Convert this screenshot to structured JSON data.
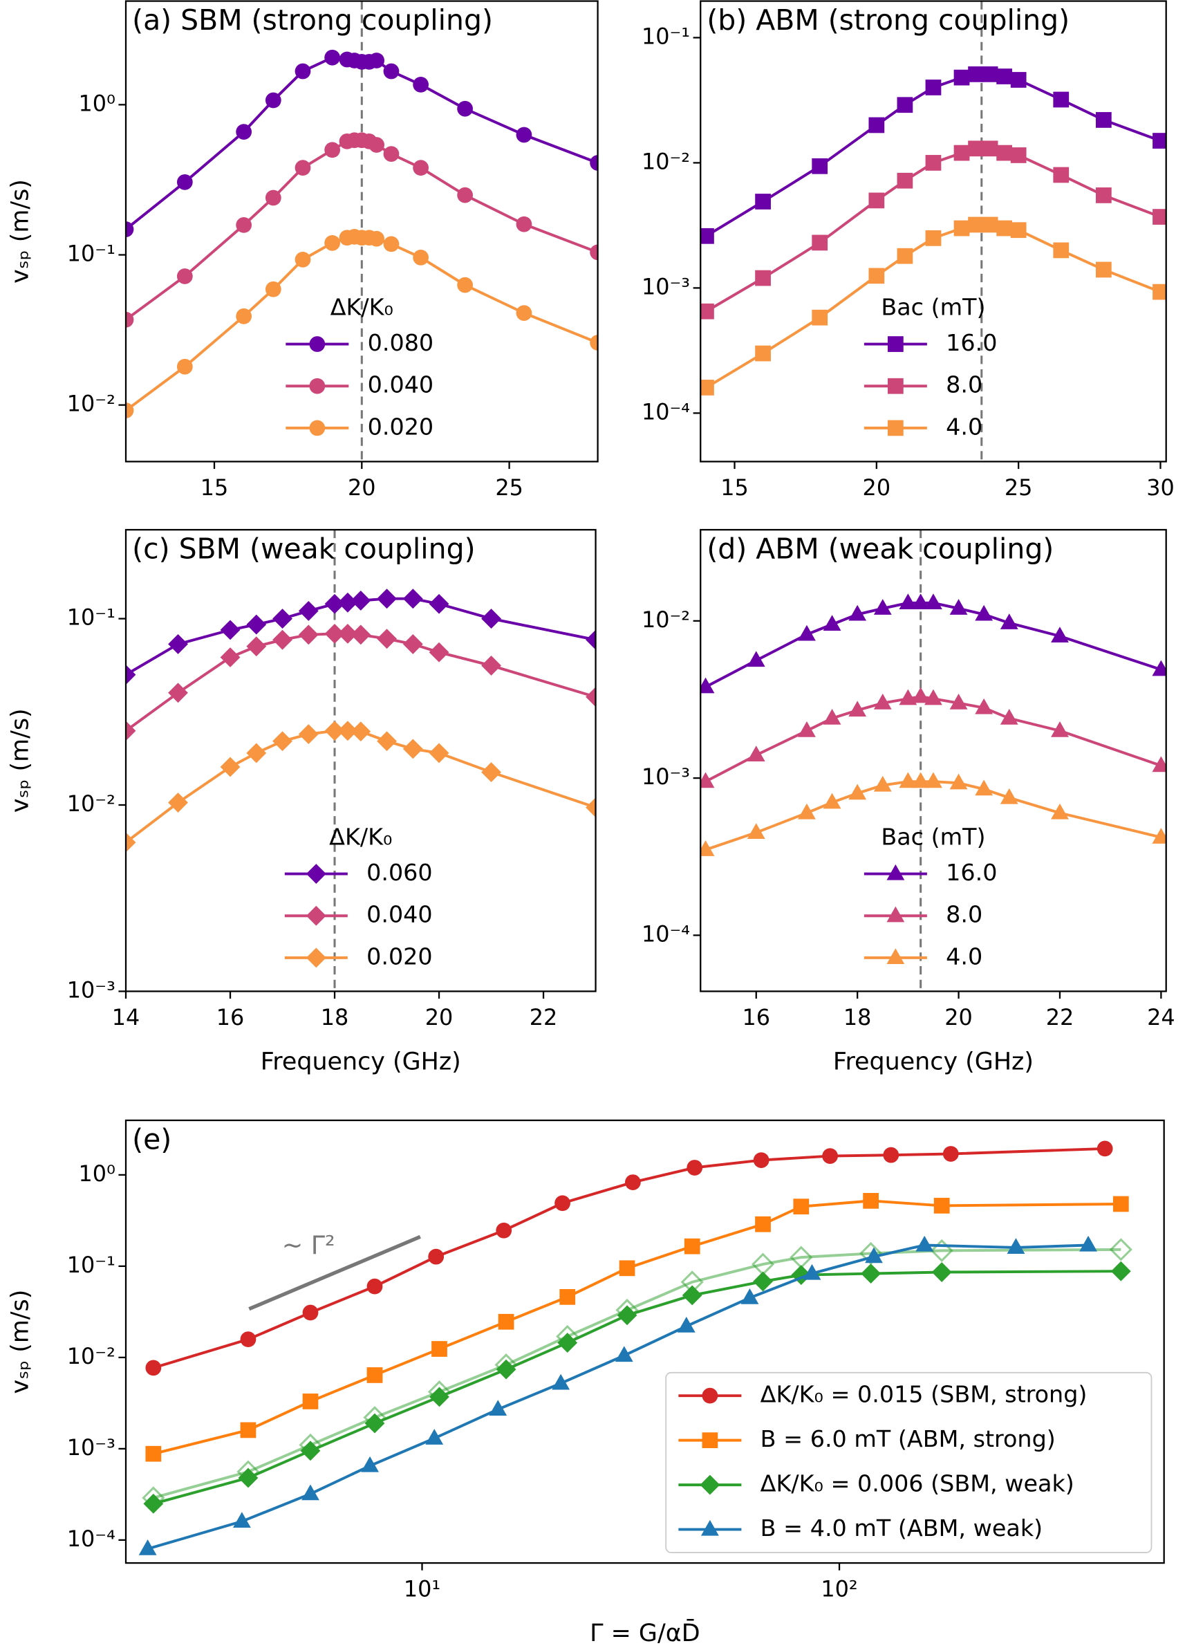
{
  "chart_data": [
    {
      "type": "line",
      "title": "(a) SBM (strong coupling)",
      "ylabel": "vₛₚ (m/s)",
      "x": [
        12,
        14,
        16,
        17,
        18,
        19,
        19.5,
        19.75,
        20,
        20.25,
        20.5,
        21,
        22,
        23.5,
        25.5,
        28
      ],
      "xlim": [
        12,
        28
      ],
      "xticks": [
        15,
        20,
        25
      ],
      "yscale": "log",
      "ylim": [
        0.0042,
        4.9
      ],
      "yticks": [
        {
          "value": 0.01,
          "label": "10⁻²"
        },
        {
          "value": 0.1,
          "label": "10⁻¹"
        },
        {
          "value": 1,
          "label": "10⁰"
        }
      ],
      "marker": "circle",
      "vline": 20,
      "legend_title": "ΔK/K₀",
      "legend": "lower center",
      "series": [
        {
          "name": "0.080",
          "color": "#6a00a8",
          "values": [
            0.148,
            0.305,
            0.66,
            1.07,
            1.67,
            2.06,
            2.0,
            1.97,
            1.93,
            1.93,
            1.97,
            1.67,
            1.36,
            0.94,
            0.63,
            0.41
          ]
        },
        {
          "name": "0.040",
          "color": "#cc4778",
          "values": [
            0.037,
            0.072,
            0.158,
            0.24,
            0.38,
            0.5,
            0.57,
            0.58,
            0.58,
            0.57,
            0.54,
            0.47,
            0.38,
            0.25,
            0.16,
            0.104
          ]
        },
        {
          "name": "0.020",
          "color": "#f89540",
          "values": [
            0.0092,
            0.018,
            0.039,
            0.059,
            0.093,
            0.12,
            0.13,
            0.132,
            0.13,
            0.13,
            0.128,
            0.118,
            0.096,
            0.063,
            0.041,
            0.026
          ]
        }
      ]
    },
    {
      "type": "line",
      "title": "(b) ABM (strong coupling)",
      "x": [
        14,
        16,
        18,
        20,
        21,
        22,
        23,
        23.5,
        24,
        24.5,
        25,
        26.5,
        28,
        30
      ],
      "xlim": [
        13.8,
        30.2
      ],
      "xticks": [
        15,
        20,
        25,
        30
      ],
      "yscale": "log",
      "ylim": [
        4.1e-05,
        0.196
      ],
      "yticks": [
        {
          "value": 0.0001,
          "label": "10⁻⁴"
        },
        {
          "value": 0.001,
          "label": "10⁻³"
        },
        {
          "value": 0.01,
          "label": "10⁻²"
        },
        {
          "value": 0.1,
          "label": "10⁻¹"
        }
      ],
      "marker": "square",
      "vline": 23.7,
      "legend_title": "Bac (mT)",
      "legend": "lower center",
      "series": [
        {
          "name": "16.0",
          "color": "#6a00a8",
          "values": [
            0.0026,
            0.0049,
            0.0094,
            0.02,
            0.029,
            0.04,
            0.048,
            0.051,
            0.051,
            0.049,
            0.046,
            0.032,
            0.022,
            0.015
          ]
        },
        {
          "name": "8.0",
          "color": "#cc4778",
          "values": [
            0.00065,
            0.0012,
            0.0023,
            0.005,
            0.0072,
            0.01,
            0.012,
            0.013,
            0.013,
            0.012,
            0.0115,
            0.008,
            0.0055,
            0.0037
          ]
        },
        {
          "name": "4.0",
          "color": "#f89540",
          "values": [
            0.00016,
            0.0003,
            0.00058,
            0.00125,
            0.0018,
            0.0025,
            0.003,
            0.0032,
            0.0032,
            0.003,
            0.0029,
            0.002,
            0.0014,
            0.00093
          ]
        }
      ]
    },
    {
      "type": "line",
      "title": "(c) SBM (weak coupling)",
      "ylabel": "vₛₚ (m/s)",
      "xlabel": "Frequency (GHz)",
      "x": [
        14,
        15,
        16,
        16.5,
        17,
        17.5,
        18,
        18.25,
        18.5,
        19,
        19.5,
        20,
        21,
        23
      ],
      "xlim": [
        14,
        23
      ],
      "xticks": [
        14,
        16,
        18,
        20,
        22
      ],
      "yscale": "log",
      "ylim": [
        0.001,
        0.3
      ],
      "yticks": [
        {
          "value": 0.001,
          "label": "10⁻³"
        },
        {
          "value": 0.01,
          "label": "10⁻²"
        },
        {
          "value": 0.1,
          "label": "10⁻¹"
        }
      ],
      "marker": "diamond",
      "vline": 18,
      "legend_title": "ΔK/K₀",
      "legend": "lower center",
      "series": [
        {
          "name": "0.060",
          "color": "#6a00a8",
          "values": [
            0.05,
            0.073,
            0.087,
            0.093,
            0.1,
            0.11,
            0.12,
            0.122,
            0.125,
            0.128,
            0.128,
            0.12,
            0.1,
            0.077
          ]
        },
        {
          "name": "0.040",
          "color": "#cc4778",
          "values": [
            0.025,
            0.04,
            0.062,
            0.071,
            0.077,
            0.082,
            0.083,
            0.083,
            0.082,
            0.078,
            0.073,
            0.066,
            0.056,
            0.038
          ]
        },
        {
          "name": "0.020",
          "color": "#f89540",
          "values": [
            0.0063,
            0.0103,
            0.016,
            0.019,
            0.022,
            0.024,
            0.025,
            0.025,
            0.0248,
            0.022,
            0.02,
            0.019,
            0.015,
            0.0097
          ]
        }
      ]
    },
    {
      "type": "line",
      "title": "(d) ABM (weak coupling)",
      "xlabel": "Frequency (GHz)",
      "x": [
        15,
        16,
        17,
        17.5,
        18,
        18.5,
        19,
        19.25,
        19.5,
        20,
        20.5,
        21,
        22,
        24
      ],
      "xlim": [
        14.9,
        24.1
      ],
      "xticks": [
        16,
        18,
        20,
        22,
        24
      ],
      "yscale": "log",
      "ylim": [
        4.4e-05,
        0.038
      ],
      "yticks": [
        {
          "value": 0.0001,
          "label": "10⁻⁴"
        },
        {
          "value": 0.001,
          "label": "10⁻³"
        },
        {
          "value": 0.01,
          "label": "10⁻²"
        }
      ],
      "marker": "triangle",
      "vline": 19.25,
      "legend_title": "Bac (mT)",
      "legend": "lower center",
      "series": [
        {
          "name": "16.0",
          "color": "#6a00a8",
          "values": [
            0.0038,
            0.0056,
            0.0082,
            0.0095,
            0.011,
            0.012,
            0.013,
            0.013,
            0.013,
            0.012,
            0.011,
            0.0097,
            0.008,
            0.0049
          ]
        },
        {
          "name": "8.0",
          "color": "#cc4778",
          "values": [
            0.00095,
            0.0014,
            0.002,
            0.0024,
            0.0027,
            0.003,
            0.0032,
            0.0033,
            0.0032,
            0.003,
            0.0028,
            0.0024,
            0.002,
            0.0012
          ]
        },
        {
          "name": "4.0",
          "color": "#f89540",
          "values": [
            0.00035,
            0.00045,
            0.0006,
            0.0007,
            0.0008,
            0.0009,
            0.00095,
            0.00095,
            0.00095,
            0.00093,
            0.00085,
            0.00075,
            0.0006,
            0.00042
          ]
        }
      ]
    },
    {
      "type": "line",
      "title": "(e)",
      "ylabel": "vₛₚ (m/s)",
      "xlabel": "Γ = G/αD̄",
      "xscale": "log",
      "xlim": [
        1.95,
        600
      ],
      "xticks": [
        {
          "value": 10,
          "label": "10¹"
        },
        {
          "value": 100,
          "label": "10²"
        }
      ],
      "yscale": "log",
      "ylim": [
        5.6e-05,
        3.96
      ],
      "yticks": [
        {
          "value": 0.0001,
          "label": "10⁻⁴"
        },
        {
          "value": 0.001,
          "label": "10⁻³"
        },
        {
          "value": 0.01,
          "label": "10⁻²"
        },
        {
          "value": 0.1,
          "label": "10⁻¹"
        },
        {
          "value": 1,
          "label": "10⁰"
        }
      ],
      "legend": "lower right",
      "guide": {
        "x": [
          3.85,
          9.9
        ],
        "y": [
          0.034,
          0.21
        ],
        "label": "~ Γ²",
        "color": "#777777"
      },
      "series": [
        {
          "name": "ΔK/K₀ = 0.015 (SBM, strong)",
          "color": "#d62728",
          "marker": "circle",
          "x": [
            2.27,
            3.83,
            5.4,
            7.7,
            10.8,
            15.7,
            21.7,
            32,
            45,
            65,
            95,
            133,
            185,
            433
          ],
          "values": [
            0.0077,
            0.0158,
            0.031,
            0.06,
            0.127,
            0.246,
            0.49,
            0.83,
            1.2,
            1.45,
            1.61,
            1.65,
            1.7,
            1.94
          ]
        },
        {
          "name": "B = 6.0 mT  (ABM, strong)",
          "color": "#ff7f0e",
          "marker": "square",
          "x": [
            2.27,
            3.83,
            5.4,
            7.7,
            11,
            15.9,
            22.3,
            31,
            44.4,
            65.6,
            81,
            119,
            176,
            473
          ],
          "values": [
            0.00088,
            0.0016,
            0.0033,
            0.0064,
            0.0124,
            0.0246,
            0.046,
            0.095,
            0.165,
            0.288,
            0.45,
            0.52,
            0.46,
            0.48
          ]
        },
        {
          "color": "#2ca02c",
          "alpha": 0.5,
          "marker": "diamond",
          "marker_fill": "none",
          "x": [
            2.27,
            3.83,
            5.4,
            7.7,
            11,
            15.9,
            22.3,
            31,
            44.4,
            65.6,
            81,
            119,
            176,
            473
          ],
          "values": [
            0.00029,
            0.00056,
            0.0011,
            0.0022,
            0.0042,
            0.0083,
            0.017,
            0.033,
            0.067,
            0.105,
            0.125,
            0.138,
            0.148,
            0.152
          ]
        },
        {
          "name": "ΔK/K₀ = 0.006 (SBM, weak)",
          "color": "#2ca02c",
          "marker": "diamond",
          "x": [
            2.27,
            3.83,
            5.4,
            7.7,
            11,
            15.9,
            22.3,
            31,
            44.4,
            65.6,
            81,
            119,
            176,
            473
          ],
          "values": [
            0.00025,
            0.00048,
            0.00095,
            0.0019,
            0.0037,
            0.0074,
            0.0145,
            0.029,
            0.048,
            0.068,
            0.08,
            0.083,
            0.086,
            0.088
          ]
        },
        {
          "name": "B = 4.0 mT (ABM, weak)",
          "color": "#1f77b4",
          "marker": "triangle",
          "x": [
            2.2,
            3.7,
            5.4,
            7.5,
            10.7,
            15.2,
            21.5,
            30.5,
            43,
            61,
            86,
            121,
            160,
            265,
            395
          ],
          "values": [
            8e-05,
            0.00016,
            0.00032,
            0.00065,
            0.0013,
            0.0027,
            0.0052,
            0.0105,
            0.022,
            0.045,
            0.083,
            0.127,
            0.17,
            0.16,
            0.17
          ]
        }
      ]
    }
  ]
}
